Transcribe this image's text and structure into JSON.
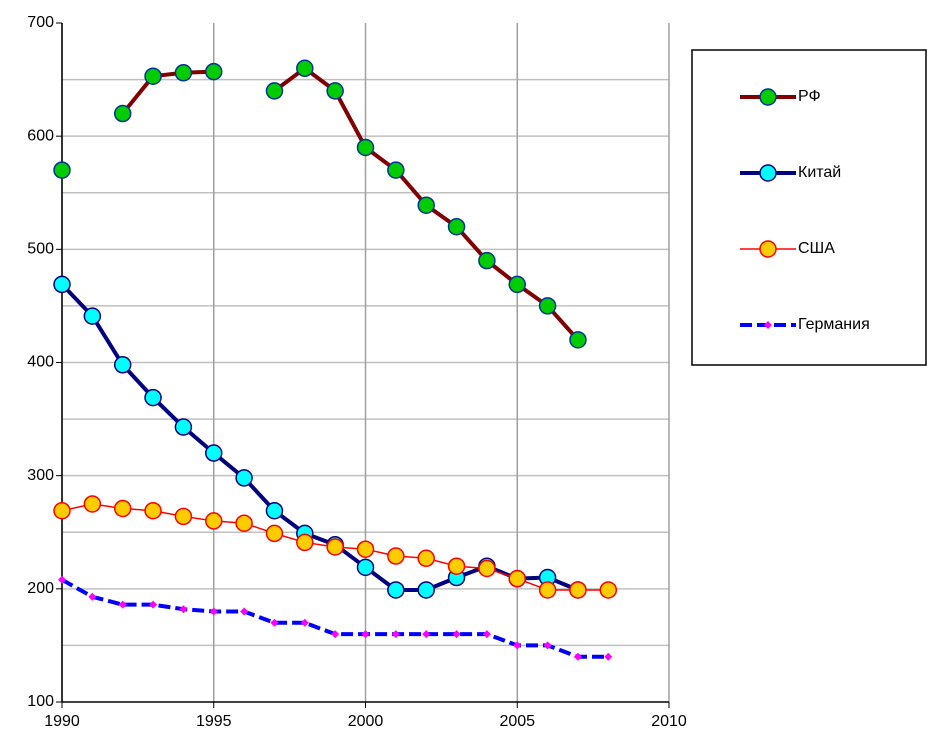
{
  "chart_data": {
    "type": "line",
    "x": [
      1990,
      1991,
      1992,
      1993,
      1994,
      1995,
      1996,
      1997,
      1998,
      1999,
      2000,
      2001,
      2002,
      2003,
      2004,
      2005,
      2006,
      2007,
      2008
    ],
    "series": [
      {
        "name": "РФ",
        "color": "#800000",
        "marker_color": "#00cc00",
        "marker_edge": "#003399",
        "marker": "circle",
        "values": [
          570,
          null,
          620,
          653,
          656,
          657,
          null,
          640,
          660,
          640,
          590,
          570,
          539,
          520,
          490,
          469,
          450,
          420,
          null
        ]
      },
      {
        "name": "Китай",
        "color": "#000080",
        "marker_color": "#00ffff",
        "marker_edge": "#000080",
        "marker": "circle",
        "values": [
          469,
          441,
          398,
          369,
          343,
          320,
          298,
          269,
          249,
          239,
          219,
          199,
          199,
          210,
          220,
          209,
          210,
          199,
          null
        ]
      },
      {
        "name": "США",
        "color": "#ff0000",
        "marker_color": "#ffcc00",
        "marker_edge": "#ff0000",
        "marker": "circle",
        "values": [
          269,
          275,
          271,
          269,
          264,
          260,
          258,
          249,
          241,
          237,
          235,
          229,
          227,
          220,
          218,
          209,
          199,
          199,
          199
        ]
      },
      {
        "name": "Германия",
        "color": "#0000ff",
        "marker_color": "#ff00ff",
        "marker_edge": "#ff00ff",
        "marker": "diamond",
        "linestyle": "dashed",
        "values": [
          208,
          193,
          186,
          186,
          182,
          180,
          180,
          170,
          170,
          160,
          160,
          160,
          160,
          160,
          160,
          150,
          150,
          140,
          140
        ]
      }
    ],
    "xlim": [
      1990,
      2010
    ],
    "xticks": [
      1990,
      1995,
      2000,
      2005,
      2010
    ],
    "ylim": [
      100,
      700
    ],
    "yticks": [
      100,
      200,
      300,
      400,
      500,
      600,
      700
    ],
    "ygrid": [
      150,
      200,
      250,
      300,
      350,
      400,
      450,
      500,
      550,
      600,
      650
    ],
    "grid": true,
    "legend": "right"
  }
}
